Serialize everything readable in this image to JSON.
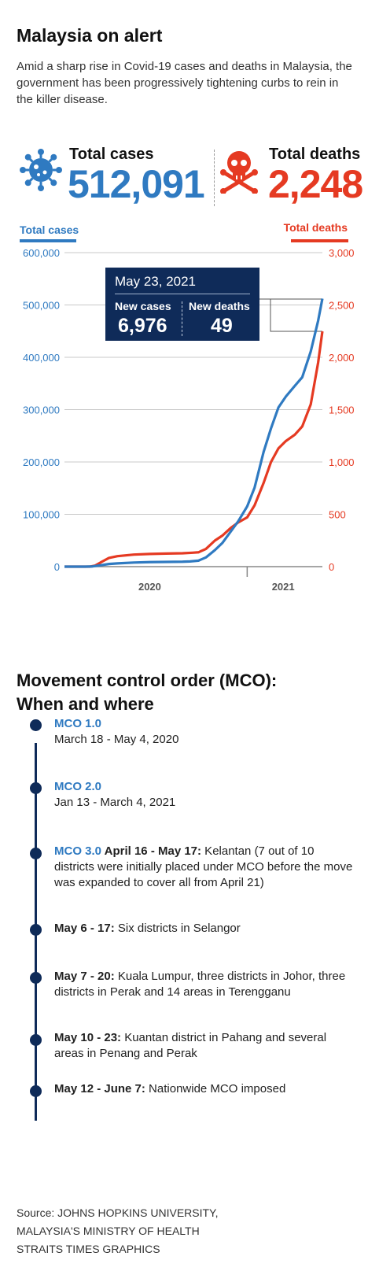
{
  "title": "Malaysia on alert",
  "intro": "Amid a sharp rise in Covid-19 cases and deaths in Malaysia, the government has been progressively tightening curbs to rein in the killer disease.",
  "stats": {
    "cases_label": "Total cases",
    "cases_value": "512,091",
    "deaths_label": "Total deaths",
    "deaths_value": "2,248",
    "cases_icon": "virus-icon",
    "deaths_icon": "skull-crossbones-icon"
  },
  "colors": {
    "cases": "#2f7ac1",
    "deaths": "#e53a22",
    "navy": "#0f2b59"
  },
  "tooltip": {
    "date": "May 23, 2021",
    "new_cases_label": "New cases",
    "new_cases_value": "6,976",
    "new_deaths_label": "New deaths",
    "new_deaths_value": "49"
  },
  "chart_data": {
    "type": "line",
    "grid": true,
    "y_left": {
      "min": 0,
      "max": 600000,
      "ticks": [
        "0",
        "100,000",
        "200,000",
        "300,000",
        "400,000",
        "500,000",
        "600,000"
      ]
    },
    "y_right": {
      "min": 0,
      "max": 3000,
      "ticks": [
        "0",
        "500",
        "1,000",
        "1,500",
        "2,000",
        "2,500",
        "3,000"
      ]
    },
    "x_ticks": [
      "2020",
      "2021"
    ],
    "series": [
      {
        "name": "Total cases",
        "axis": "left",
        "points": [
          [
            "2020-01-22",
            0
          ],
          [
            "2020-03-01",
            29
          ],
          [
            "2020-03-15",
            428
          ],
          [
            "2020-03-31",
            2766
          ],
          [
            "2020-04-15",
            5072
          ],
          [
            "2020-05-01",
            6176
          ],
          [
            "2020-06-01",
            7819
          ],
          [
            "2020-07-01",
            8640
          ],
          [
            "2020-08-01",
            8976
          ],
          [
            "2020-09-01",
            9354
          ],
          [
            "2020-09-15",
            9946
          ],
          [
            "2020-10-01",
            11484
          ],
          [
            "2020-10-15",
            17540
          ],
          [
            "2020-11-01",
            31548
          ],
          [
            "2020-11-15",
            45095
          ],
          [
            "2020-12-01",
            67169
          ],
          [
            "2020-12-15",
            86618
          ],
          [
            "2021-01-01",
            115078
          ],
          [
            "2021-01-15",
            151066
          ],
          [
            "2021-02-01",
            219173
          ],
          [
            "2021-02-15",
            264269
          ],
          [
            "2021-03-01",
            304135
          ],
          [
            "2021-03-15",
            324971
          ],
          [
            "2021-04-01",
            345500
          ],
          [
            "2021-04-15",
            362000
          ],
          [
            "2021-05-01",
            411000
          ],
          [
            "2021-05-15",
            470000
          ],
          [
            "2021-05-23",
            512091
          ]
        ]
      },
      {
        "name": "Total deaths",
        "axis": "right",
        "points": [
          [
            "2020-01-22",
            0
          ],
          [
            "2020-03-10",
            0
          ],
          [
            "2020-03-20",
            10
          ],
          [
            "2020-04-01",
            45
          ],
          [
            "2020-04-15",
            83
          ],
          [
            "2020-05-01",
            100
          ],
          [
            "2020-06-01",
            115
          ],
          [
            "2020-07-01",
            121
          ],
          [
            "2020-08-01",
            125
          ],
          [
            "2020-09-01",
            128
          ],
          [
            "2020-09-20",
            133
          ],
          [
            "2020-10-01",
            137
          ],
          [
            "2020-10-15",
            169
          ],
          [
            "2020-11-01",
            249
          ],
          [
            "2020-11-15",
            296
          ],
          [
            "2020-12-01",
            370
          ],
          [
            "2020-12-15",
            422
          ],
          [
            "2021-01-01",
            471
          ],
          [
            "2021-01-15",
            586
          ],
          [
            "2021-02-01",
            800
          ],
          [
            "2021-02-15",
            1000
          ],
          [
            "2021-03-01",
            1130
          ],
          [
            "2021-03-15",
            1200
          ],
          [
            "2021-04-01",
            1261
          ],
          [
            "2021-04-15",
            1340
          ],
          [
            "2021-05-01",
            1550
          ],
          [
            "2021-05-15",
            1950
          ],
          [
            "2021-05-23",
            2248
          ]
        ]
      }
    ]
  },
  "mco": {
    "title_line1": "Movement control order (MCO):",
    "title_line2": "When and where",
    "items": [
      {
        "name": "MCO 1.0",
        "bold": "",
        "text": "",
        "dates": "March 18 - May 4, 2020"
      },
      {
        "name": "MCO 2.0",
        "bold": "",
        "text": "",
        "dates": "Jan 13 - March 4, 2021"
      },
      {
        "name": "MCO 3.0",
        "bold": " April 16 - May 17:",
        "text": " Kelantan (7 out of 10 districts were initially placed under MCO before the move was expanded to cover all from April 21)",
        "dates": ""
      },
      {
        "name": "",
        "bold": "May 6 - 17:",
        "text": " Six districts in Selangor",
        "dates": ""
      },
      {
        "name": "",
        "bold": "May 7 - 20:",
        "text": " Kuala Lumpur, three districts in Johor, three districts in Perak and 14 areas in Terengganu",
        "dates": ""
      },
      {
        "name": "",
        "bold": "May 10 - 23:",
        "text": " Kuantan district in Pahang and several areas in Penang and Perak",
        "dates": ""
      },
      {
        "name": "",
        "bold": "May 12 - June 7:",
        "text": " Nationwide MCO imposed",
        "dates": ""
      }
    ]
  },
  "source": {
    "line1": "Source: JOHNS HOPKINS UNIVERSITY,",
    "line2": "MALAYSIA'S MINISTRY OF HEALTH",
    "line3": "STRAITS TIMES GRAPHICS"
  }
}
